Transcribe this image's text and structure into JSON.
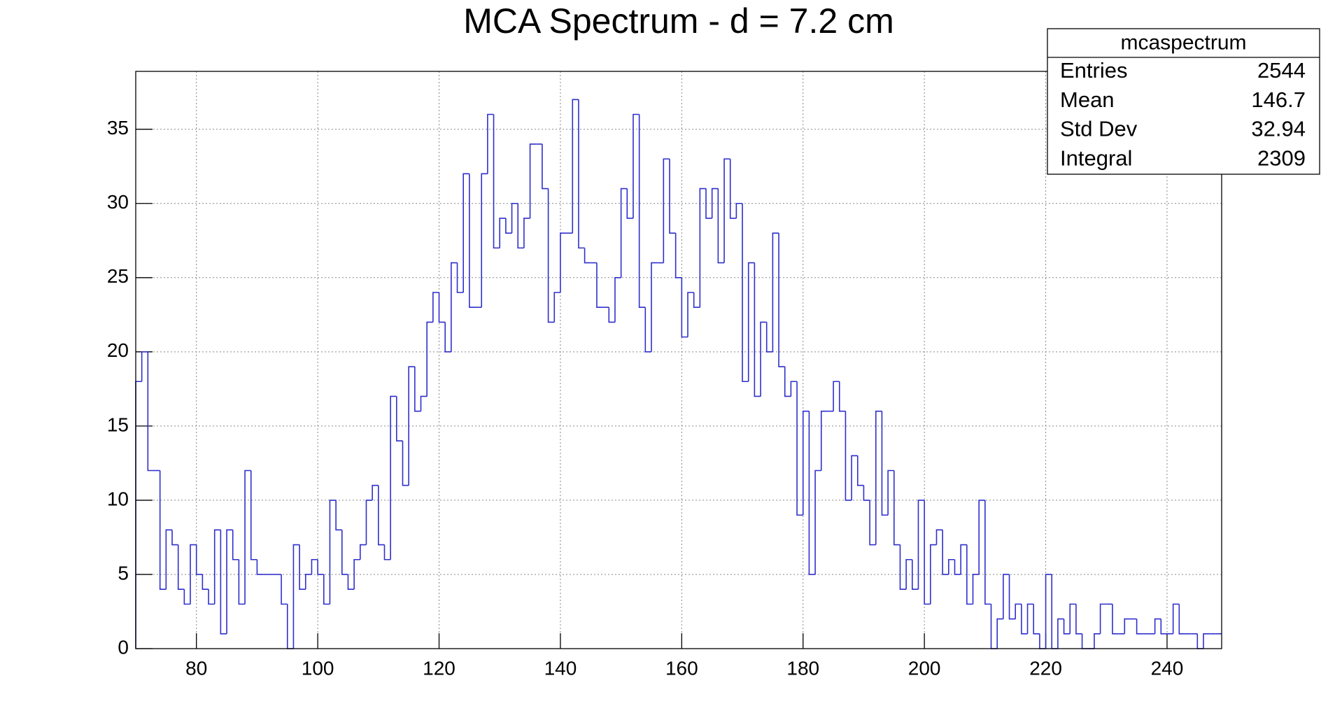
{
  "chart_data": {
    "type": "histogram",
    "title": "MCA Spectrum - d = 7.2 cm",
    "bins": [
      70,
      71,
      72,
      73,
      74,
      75,
      76,
      77,
      78,
      79,
      80,
      81,
      82,
      83,
      84,
      85,
      86,
      87,
      88,
      89,
      90,
      91,
      92,
      93,
      94,
      95,
      96,
      97,
      98,
      99,
      100,
      101,
      102,
      103,
      104,
      105,
      106,
      107,
      108,
      109,
      110,
      111,
      112,
      113,
      114,
      115,
      116,
      117,
      118,
      119,
      120,
      121,
      122,
      123,
      124,
      125,
      126,
      127,
      128,
      129,
      130,
      131,
      132,
      133,
      134,
      135,
      136,
      137,
      138,
      139,
      140,
      141,
      142,
      143,
      144,
      145,
      146,
      147,
      148,
      149,
      150,
      151,
      152,
      153,
      154,
      155,
      156,
      157,
      158,
      159,
      160,
      161,
      162,
      163,
      164,
      165,
      166,
      167,
      168,
      169,
      170,
      171,
      172,
      173,
      174,
      175,
      176,
      177,
      178,
      179,
      180,
      181,
      182,
      183,
      184,
      185,
      186,
      187,
      188,
      189,
      190,
      191,
      192,
      193,
      194,
      195,
      196,
      197,
      198,
      199,
      200,
      201,
      202,
      203,
      204,
      205,
      206,
      207,
      208,
      209,
      210,
      211,
      212,
      213,
      214,
      215,
      216,
      217,
      218,
      219,
      220,
      221,
      222,
      223,
      224,
      225,
      226,
      227,
      228,
      229,
      230,
      231,
      232,
      233,
      234,
      235,
      236,
      237,
      238,
      239,
      240,
      241,
      242,
      243,
      244,
      245,
      246,
      247,
      248,
      249
    ],
    "values": [
      18,
      20,
      12,
      12,
      4,
      8,
      7,
      4,
      3,
      7,
      5,
      4,
      3,
      8,
      1,
      8,
      6,
      3,
      12,
      6,
      5,
      5,
      5,
      5,
      3,
      0,
      7,
      4,
      5,
      6,
      5,
      3,
      10,
      8,
      5,
      4,
      6,
      7,
      10,
      11,
      7,
      6,
      17,
      14,
      11,
      19,
      16,
      17,
      22,
      24,
      22,
      20,
      26,
      24,
      32,
      23,
      23,
      32,
      36,
      27,
      29,
      28,
      30,
      27,
      29,
      34,
      34,
      31,
      22,
      24,
      28,
      28,
      37,
      27,
      26,
      26,
      23,
      23,
      22,
      25,
      31,
      29,
      36,
      23,
      20,
      26,
      26,
      33,
      28,
      25,
      21,
      24,
      23,
      31,
      29,
      31,
      26,
      33,
      29,
      30,
      18,
      26,
      17,
      22,
      20,
      28,
      19,
      17,
      18,
      9,
      16,
      5,
      12,
      16,
      16,
      18,
      16,
      10,
      13,
      11,
      10,
      7,
      16,
      9,
      12,
      7,
      4,
      6,
      4,
      10,
      3,
      7,
      8,
      5,
      6,
      5,
      7,
      3,
      5,
      10,
      3,
      0,
      2,
      5,
      2,
      3,
      1,
      3,
      1,
      0,
      5,
      0,
      2,
      1,
      3,
      1,
      0,
      0,
      1,
      3,
      3,
      1,
      1,
      2,
      2,
      1,
      1,
      1,
      2,
      1,
      1,
      3,
      1,
      1,
      1,
      0,
      1,
      1,
      1
    ],
    "color": "#2f2fcc",
    "xlim": [
      70,
      249
    ],
    "ylim": [
      0,
      38.9
    ],
    "xticks": [
      80,
      100,
      120,
      140,
      160,
      180,
      200,
      220,
      240
    ],
    "yticks": [
      0,
      5,
      10,
      15,
      20,
      25,
      30,
      35
    ],
    "grid": true,
    "stats_box": {
      "title": "mcaspectrum",
      "rows": [
        {
          "label": "Entries",
          "value": 2544
        },
        {
          "label": "Mean",
          "value": 146.7
        },
        {
          "label": "Std Dev",
          "value": 32.94
        },
        {
          "label": "Integral",
          "value": 2309
        }
      ]
    }
  }
}
